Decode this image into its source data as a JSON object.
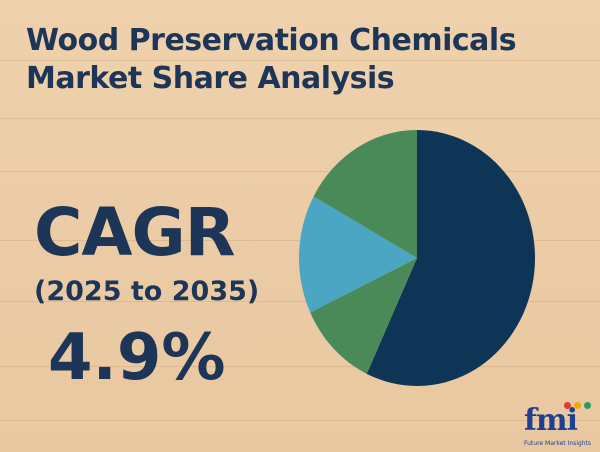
{
  "title_line1": "Wood Preservation Chemicals",
  "title_line2": "Market Share Analysis",
  "cagr_label": "CAGR",
  "period": "(2025 to 2035)",
  "cagr_value": "4.9%",
  "logo": {
    "text": "fmi",
    "tagline": "Future Market Insights"
  },
  "colors": {
    "navy": "#0f3556",
    "green": "#4a8a58",
    "teal": "#4aa6c3",
    "text": "#1d3557",
    "logo": "#1f3f8f"
  },
  "chart_data": {
    "type": "pie",
    "title": "",
    "slices": [
      {
        "label": "",
        "value": 57,
        "color": "#0f3556"
      },
      {
        "label": "",
        "value": 11,
        "color": "#4a8a58"
      },
      {
        "label": "",
        "value": 15,
        "color": "#4aa6c3"
      },
      {
        "label": "",
        "value": 17,
        "color": "#4a8a58"
      }
    ]
  }
}
